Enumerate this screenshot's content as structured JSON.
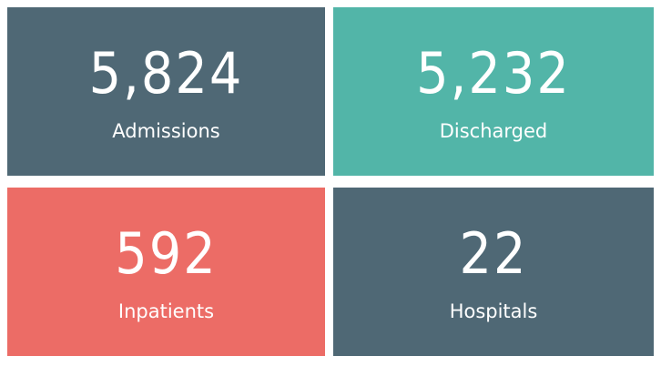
{
  "cards": [
    {
      "value": "5,824",
      "label": "Admissions",
      "color": "#4f6875"
    },
    {
      "value": "5,232",
      "label": "Discharged",
      "color": "#52b5a8"
    },
    {
      "value": "592",
      "label": "Inpatients",
      "color": "#ec6c66"
    },
    {
      "value": "22",
      "label": "Hospitals",
      "color": "#4f6875"
    }
  ]
}
